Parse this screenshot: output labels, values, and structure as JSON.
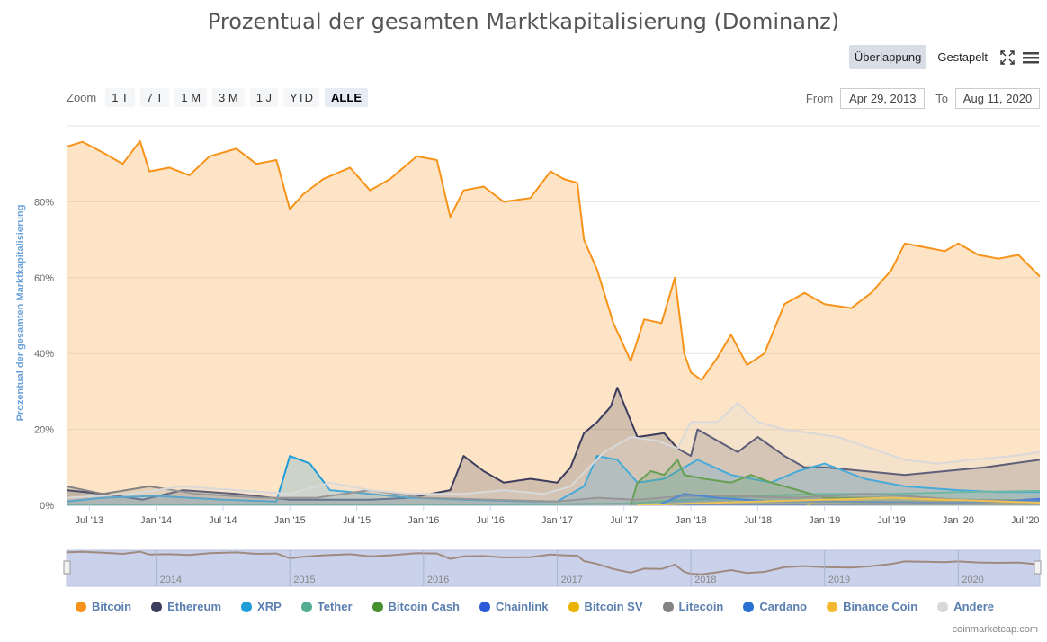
{
  "title": "Prozentual der gesamten Marktkapitalisierung (Dominanz)",
  "mode_toggle": {
    "overlap": "Überlappung",
    "stacked": "Gestapelt"
  },
  "zoom": {
    "label": "Zoom",
    "buttons": [
      "1 T",
      "7 T",
      "1 M",
      "3 M",
      "1 J",
      "YTD",
      "ALLE"
    ],
    "active": "ALLE"
  },
  "range": {
    "from_label": "From",
    "from_value": "Apr 29, 2013",
    "to_label": "To",
    "to_value": "Aug 11, 2020"
  },
  "credit": "coinmarketcap.com",
  "chart_data": {
    "type": "area",
    "title": "Prozentual der gesamten Marktkapitalisierung (Dominanz)",
    "ylabel": "Prozentual der gesamten Marktkapitalisierung",
    "xlabel": "",
    "ylim": [
      0,
      100
    ],
    "xlim": [
      2013.33,
      2020.61
    ],
    "grid": true,
    "legend_position": "bottom",
    "y_ticks": [
      0,
      20,
      40,
      60,
      80
    ],
    "y_tick_labels": [
      "0%",
      "20%",
      "40%",
      "60%",
      "80%"
    ],
    "x_ticks": [
      2013.5,
      2014.0,
      2014.5,
      2015.0,
      2015.5,
      2016.0,
      2016.5,
      2017.0,
      2017.5,
      2018.0,
      2018.5,
      2019.0,
      2019.5,
      2020.0,
      2020.5
    ],
    "x_tick_labels": [
      "Jul '13",
      "Jan '14",
      "Jul '14",
      "Jan '15",
      "Jul '15",
      "Jan '16",
      "Jul '16",
      "Jan '17",
      "Jul '17",
      "Jan '18",
      "Jul '18",
      "Jan '19",
      "Jul '19",
      "Jan '20",
      "Jul '20"
    ],
    "navigator_labels": [
      "2014",
      "2015",
      "2016",
      "2017",
      "2018",
      "2019",
      "2020"
    ],
    "series": [
      {
        "name": "Bitcoin",
        "color": "#f7931a",
        "points": [
          [
            2013.33,
            94.5
          ],
          [
            2013.45,
            95.8
          ],
          [
            2013.6,
            93
          ],
          [
            2013.75,
            90
          ],
          [
            2013.88,
            96
          ],
          [
            2013.95,
            88
          ],
          [
            2014.1,
            89
          ],
          [
            2014.25,
            87
          ],
          [
            2014.4,
            92
          ],
          [
            2014.6,
            94
          ],
          [
            2014.75,
            90
          ],
          [
            2014.9,
            91
          ],
          [
            2015.0,
            78
          ],
          [
            2015.1,
            82
          ],
          [
            2015.25,
            86
          ],
          [
            2015.45,
            89
          ],
          [
            2015.6,
            83
          ],
          [
            2015.75,
            86
          ],
          [
            2015.95,
            92
          ],
          [
            2016.1,
            91
          ],
          [
            2016.2,
            76
          ],
          [
            2016.3,
            83
          ],
          [
            2016.45,
            84
          ],
          [
            2016.6,
            80
          ],
          [
            2016.8,
            81
          ],
          [
            2016.95,
            88
          ],
          [
            2017.05,
            86
          ],
          [
            2017.15,
            85
          ],
          [
            2017.2,
            70
          ],
          [
            2017.3,
            62
          ],
          [
            2017.42,
            48
          ],
          [
            2017.55,
            38
          ],
          [
            2017.65,
            49
          ],
          [
            2017.78,
            48
          ],
          [
            2017.88,
            60
          ],
          [
            2017.95,
            40
          ],
          [
            2018.0,
            35
          ],
          [
            2018.08,
            33
          ],
          [
            2018.2,
            39
          ],
          [
            2018.3,
            45
          ],
          [
            2018.42,
            37
          ],
          [
            2018.55,
            40
          ],
          [
            2018.7,
            53
          ],
          [
            2018.85,
            56
          ],
          [
            2019.0,
            53
          ],
          [
            2019.2,
            52
          ],
          [
            2019.35,
            56
          ],
          [
            2019.5,
            62
          ],
          [
            2019.6,
            69
          ],
          [
            2019.75,
            68
          ],
          [
            2019.9,
            67
          ],
          [
            2020.0,
            69
          ],
          [
            2020.15,
            66
          ],
          [
            2020.3,
            65
          ],
          [
            2020.45,
            66
          ],
          [
            2020.61,
            60.3
          ]
        ]
      },
      {
        "name": "Ethereum",
        "color": "#3c3c5d",
        "points": [
          [
            2013.33,
            4
          ],
          [
            2013.6,
            3
          ],
          [
            2013.9,
            1.5
          ],
          [
            2014.2,
            4
          ],
          [
            2014.6,
            3
          ],
          [
            2015.0,
            1.5
          ],
          [
            2015.6,
            1.5
          ],
          [
            2015.9,
            2
          ],
          [
            2016.2,
            4
          ],
          [
            2016.3,
            13
          ],
          [
            2016.45,
            9
          ],
          [
            2016.6,
            6
          ],
          [
            2016.8,
            7
          ],
          [
            2017.0,
            6
          ],
          [
            2017.1,
            10
          ],
          [
            2017.2,
            19
          ],
          [
            2017.3,
            22
          ],
          [
            2017.4,
            26
          ],
          [
            2017.45,
            31
          ],
          [
            2017.6,
            18
          ],
          [
            2017.8,
            19
          ],
          [
            2017.9,
            15
          ],
          [
            2018.0,
            13
          ],
          [
            2018.05,
            20
          ],
          [
            2018.2,
            17
          ],
          [
            2018.35,
            14
          ],
          [
            2018.5,
            18
          ],
          [
            2018.7,
            13
          ],
          [
            2018.85,
            10
          ],
          [
            2019.0,
            10
          ],
          [
            2019.3,
            9
          ],
          [
            2019.6,
            8
          ],
          [
            2019.9,
            9
          ],
          [
            2020.2,
            10
          ],
          [
            2020.4,
            11
          ],
          [
            2020.61,
            12
          ]
        ]
      },
      {
        "name": "XRP",
        "color": "#1e9dd8",
        "points": [
          [
            2013.33,
            1
          ],
          [
            2013.6,
            2
          ],
          [
            2014.0,
            2.5
          ],
          [
            2014.5,
            1.5
          ],
          [
            2014.9,
            1
          ],
          [
            2015.0,
            13
          ],
          [
            2015.15,
            11
          ],
          [
            2015.3,
            4
          ],
          [
            2015.6,
            3
          ],
          [
            2015.9,
            2
          ],
          [
            2016.3,
            1.5
          ],
          [
            2016.8,
            1
          ],
          [
            2017.0,
            1
          ],
          [
            2017.2,
            5
          ],
          [
            2017.3,
            13
          ],
          [
            2017.45,
            12
          ],
          [
            2017.6,
            6
          ],
          [
            2017.8,
            7
          ],
          [
            2017.95,
            10
          ],
          [
            2018.05,
            12
          ],
          [
            2018.3,
            8
          ],
          [
            2018.6,
            6
          ],
          [
            2018.8,
            9
          ],
          [
            2019.0,
            11
          ],
          [
            2019.3,
            7
          ],
          [
            2019.6,
            5
          ],
          [
            2020.0,
            4
          ],
          [
            2020.3,
            3.5
          ],
          [
            2020.61,
            3.5
          ]
        ]
      },
      {
        "name": "Tether",
        "color": "#53ae94",
        "points": [
          [
            2013.33,
            0
          ],
          [
            2015.0,
            0
          ],
          [
            2016.0,
            0.2
          ],
          [
            2017.0,
            0.3
          ],
          [
            2017.5,
            0.5
          ],
          [
            2018.0,
            1.5
          ],
          [
            2018.5,
            2.5
          ],
          [
            2019.0,
            3
          ],
          [
            2019.5,
            3
          ],
          [
            2020.0,
            3.5
          ],
          [
            2020.61,
            3.8
          ]
        ]
      },
      {
        "name": "Bitcoin Cash",
        "color": "#478f2f",
        "points": [
          [
            2017.55,
            0
          ],
          [
            2017.6,
            6
          ],
          [
            2017.7,
            9
          ],
          [
            2017.8,
            8
          ],
          [
            2017.9,
            12
          ],
          [
            2017.95,
            8
          ],
          [
            2018.1,
            7
          ],
          [
            2018.3,
            6
          ],
          [
            2018.45,
            8
          ],
          [
            2018.6,
            6
          ],
          [
            2018.8,
            4
          ],
          [
            2019.0,
            2
          ],
          [
            2019.5,
            2
          ],
          [
            2020.0,
            1.5
          ],
          [
            2020.61,
            1.3
          ]
        ]
      },
      {
        "name": "Chainlink",
        "color": "#2a5ada",
        "points": [
          [
            2017.7,
            0
          ],
          [
            2018.0,
            0.3
          ],
          [
            2019.0,
            0.2
          ],
          [
            2019.6,
            0.5
          ],
          [
            2020.2,
            0.8
          ],
          [
            2020.61,
            1.7
          ]
        ]
      },
      {
        "name": "Bitcoin SV",
        "color": "#eab300",
        "points": [
          [
            2018.87,
            0
          ],
          [
            2018.95,
            1.5
          ],
          [
            2019.3,
            1
          ],
          [
            2019.6,
            0.8
          ],
          [
            2020.0,
            1.5
          ],
          [
            2020.61,
            1
          ]
        ]
      },
      {
        "name": "Litecoin",
        "color": "#838383",
        "points": [
          [
            2013.33,
            5
          ],
          [
            2013.6,
            3
          ],
          [
            2013.95,
            5
          ],
          [
            2014.3,
            3
          ],
          [
            2014.8,
            2
          ],
          [
            2015.2,
            2
          ],
          [
            2015.6,
            4
          ],
          [
            2016.0,
            2
          ],
          [
            2016.5,
            1.5
          ],
          [
            2017.0,
            1
          ],
          [
            2017.3,
            2
          ],
          [
            2017.6,
            1.5
          ],
          [
            2017.95,
            2.5
          ],
          [
            2018.3,
            2.5
          ],
          [
            2018.8,
            2
          ],
          [
            2019.3,
            3
          ],
          [
            2019.6,
            2.5
          ],
          [
            2020.0,
            1.5
          ],
          [
            2020.61,
            1.2
          ]
        ]
      },
      {
        "name": "Cardano",
        "color": "#2a71d0",
        "points": [
          [
            2017.75,
            0
          ],
          [
            2017.95,
            3
          ],
          [
            2018.2,
            2
          ],
          [
            2018.6,
            1
          ],
          [
            2019.0,
            1
          ],
          [
            2020.0,
            0.8
          ],
          [
            2020.61,
            1.3
          ]
        ]
      },
      {
        "name": "Binance Coin",
        "color": "#f3ba2f",
        "points": [
          [
            2017.6,
            0
          ],
          [
            2018.0,
            0.5
          ],
          [
            2018.5,
            1
          ],
          [
            2019.0,
            1.5
          ],
          [
            2019.5,
            2
          ],
          [
            2020.0,
            1.4
          ],
          [
            2020.61,
            0.7
          ]
        ]
      },
      {
        "name": "Andere",
        "color": "#d9d9d9",
        "points": [
          [
            2013.33,
            2
          ],
          [
            2013.8,
            3
          ],
          [
            2014.2,
            5
          ],
          [
            2014.6,
            4
          ],
          [
            2015.0,
            3
          ],
          [
            2015.3,
            6
          ],
          [
            2015.6,
            4
          ],
          [
            2015.9,
            3
          ],
          [
            2016.3,
            3
          ],
          [
            2016.6,
            4
          ],
          [
            2016.9,
            3
          ],
          [
            2017.1,
            5
          ],
          [
            2017.35,
            14
          ],
          [
            2017.55,
            18
          ],
          [
            2017.75,
            17
          ],
          [
            2017.9,
            15
          ],
          [
            2018.0,
            22
          ],
          [
            2018.2,
            22
          ],
          [
            2018.35,
            27
          ],
          [
            2018.5,
            22
          ],
          [
            2018.7,
            20
          ],
          [
            2018.9,
            19
          ],
          [
            2019.1,
            18
          ],
          [
            2019.35,
            15
          ],
          [
            2019.6,
            12
          ],
          [
            2019.85,
            11
          ],
          [
            2020.1,
            12
          ],
          [
            2020.4,
            13
          ],
          [
            2020.61,
            14
          ]
        ]
      }
    ]
  }
}
